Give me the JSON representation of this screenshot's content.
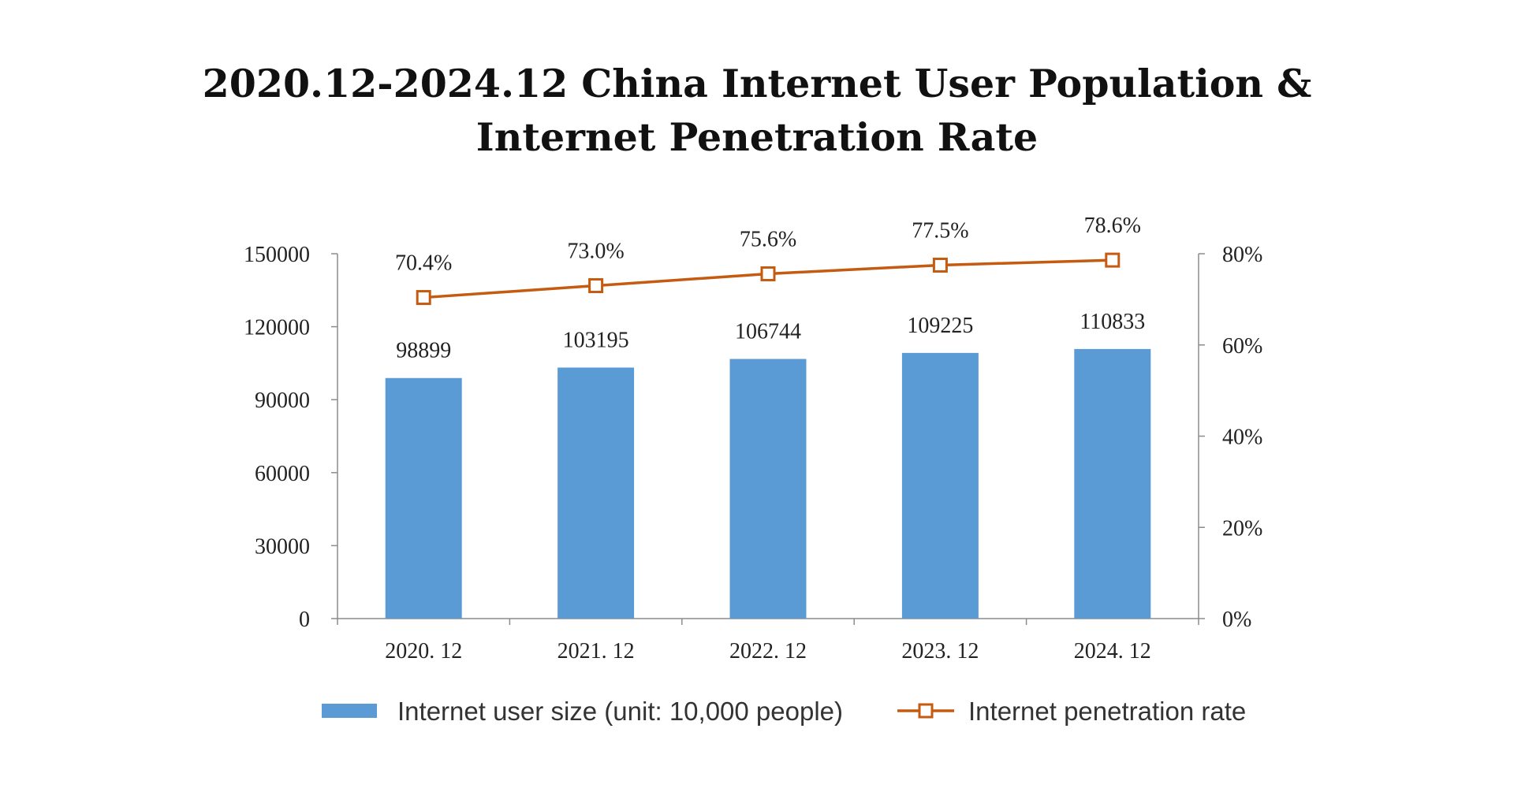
{
  "chart_data": {
    "type": "bar+line",
    "title_line1": "2020.12-2024.12 China Internet User Population &",
    "title_line2": "Internet Penetration Rate",
    "categories": [
      "2020. 12",
      "2021. 12",
      "2022. 12",
      "2023. 12",
      "2024. 12"
    ],
    "series": [
      {
        "name": "Internet user size (unit: 10,000 people)",
        "type": "bar",
        "axis": "left",
        "color": "#5B9BD5",
        "values": [
          98899,
          103195,
          106744,
          109225,
          110833
        ],
        "labels": [
          "98899",
          "103195",
          "106744",
          "109225",
          "110833"
        ]
      },
      {
        "name": "Internet penetration rate",
        "type": "line",
        "axis": "right",
        "color": "#C55A11",
        "values": [
          70.4,
          73.0,
          75.6,
          77.5,
          78.6
        ],
        "labels": [
          "70.4%",
          "73.0%",
          "75.6%",
          "77.5%",
          "78.6%"
        ]
      }
    ],
    "left_axis": {
      "range": [
        0,
        150000
      ],
      "ticks": [
        0,
        30000,
        60000,
        90000,
        120000,
        150000
      ],
      "tick_labels": [
        "0",
        "30000",
        "60000",
        "90000",
        "120000",
        "150000"
      ]
    },
    "right_axis": {
      "range": [
        0,
        80
      ],
      "ticks": [
        0,
        20,
        40,
        60,
        80
      ],
      "tick_labels": [
        "0%",
        "20%",
        "40%",
        "60%",
        "80%"
      ]
    },
    "legend_position": "bottom"
  }
}
